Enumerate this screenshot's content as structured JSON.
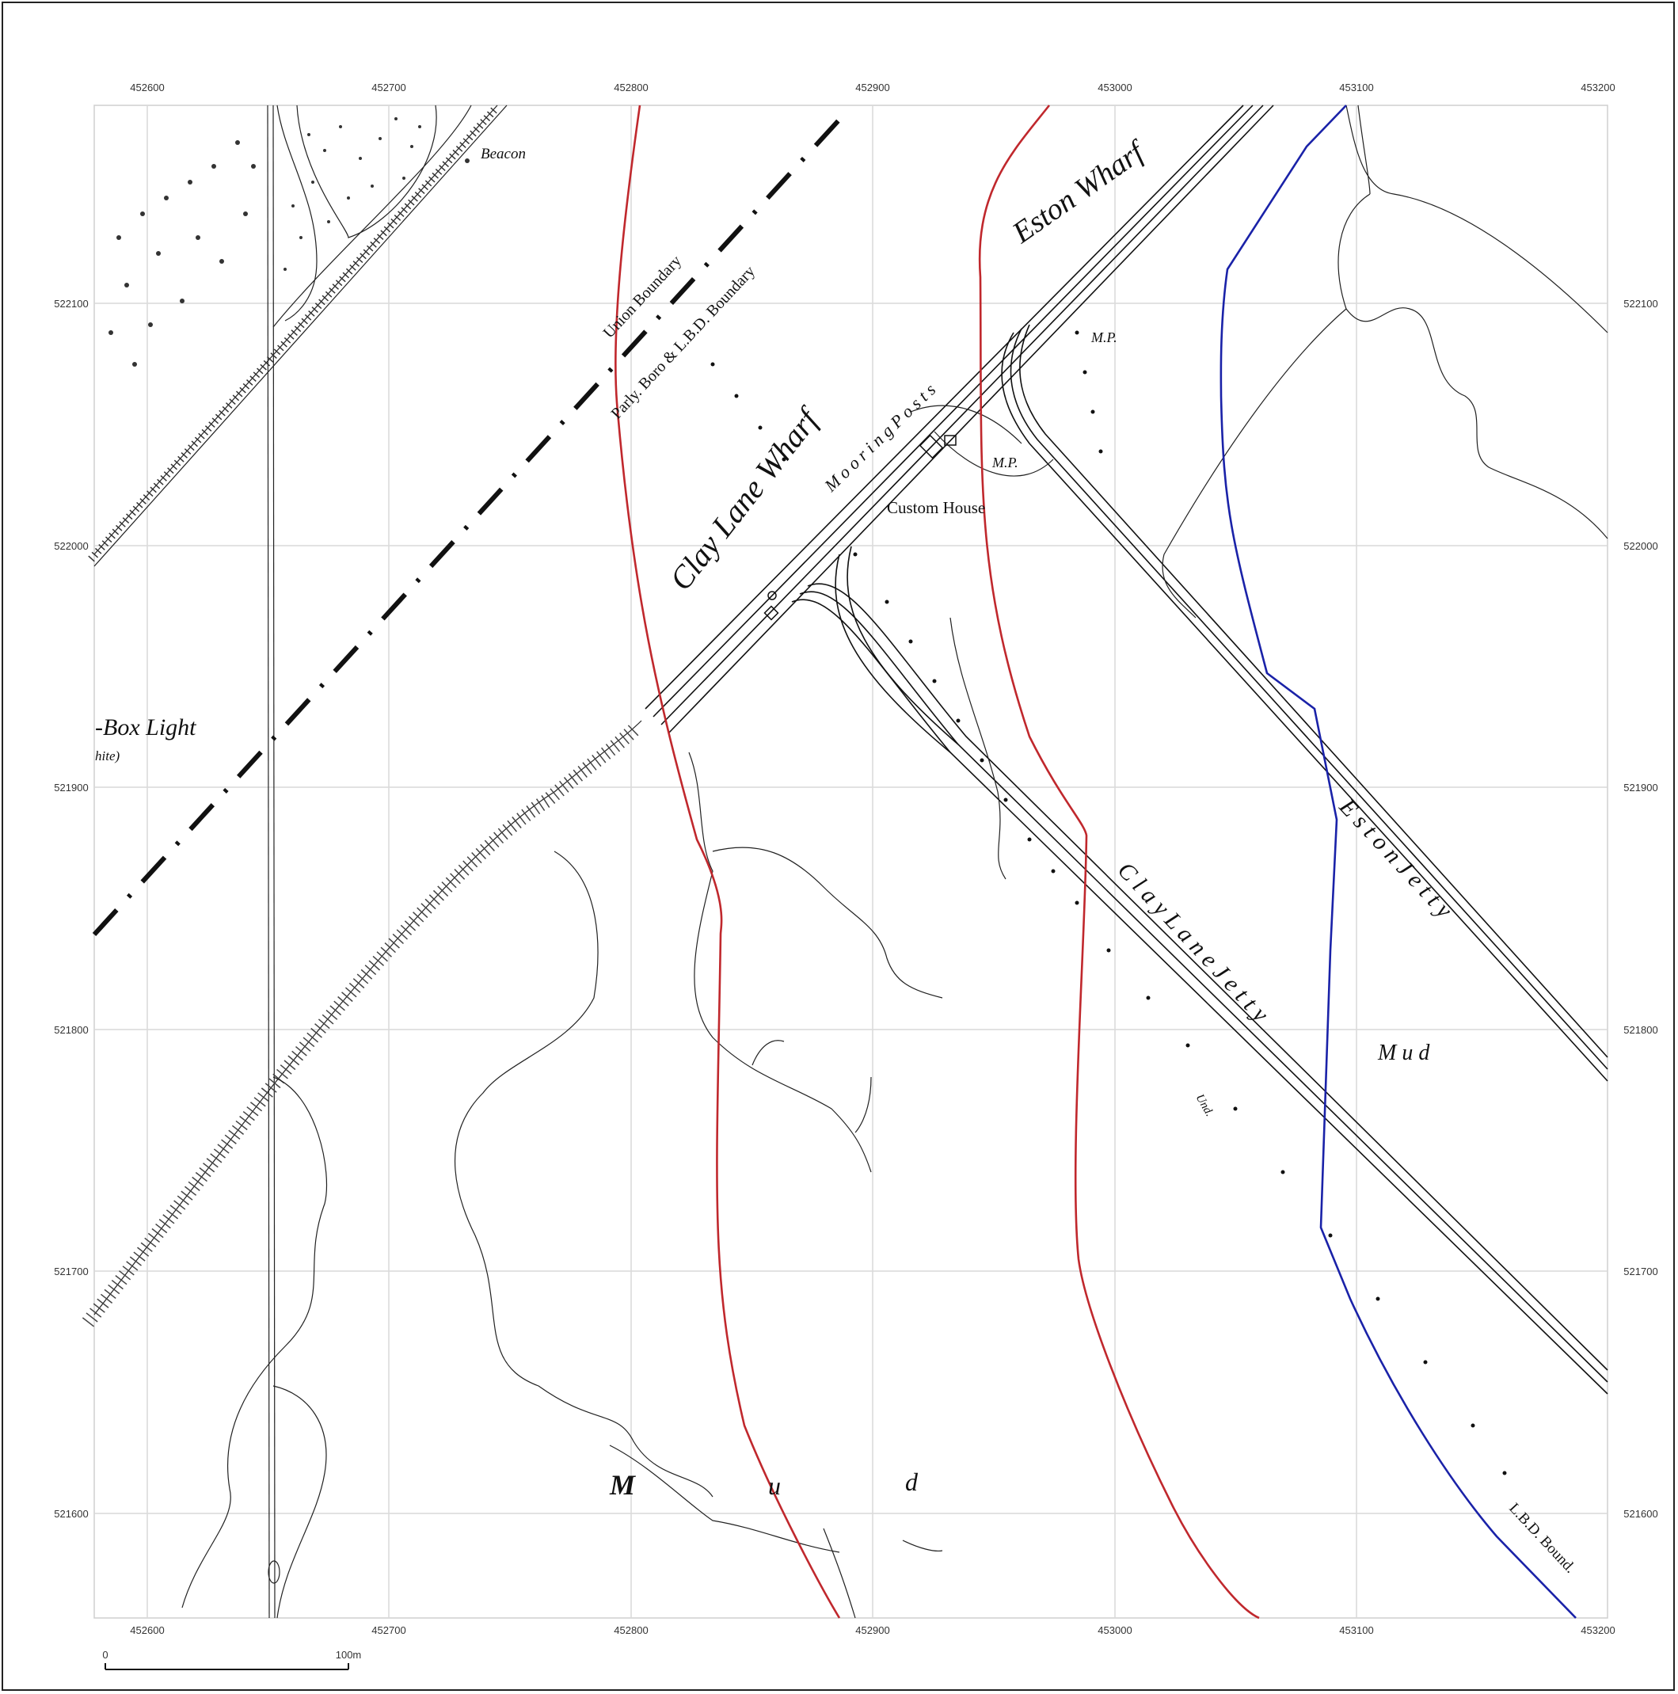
{
  "map": {
    "eastings": [
      "452600",
      "452700",
      "452800",
      "452900",
      "453000",
      "453100",
      "453200"
    ],
    "northings": [
      "522100",
      "522000",
      "521900",
      "521800",
      "521700",
      "521600"
    ],
    "labels": {
      "beacon": "Beacon",
      "union_boundary": "Union Boundary",
      "parly_boundary": "Parly. Boro & L.B.D. Boundary",
      "eston_wharf": "Eston Wharf",
      "mooring_posts": "M o o r i n g   P o s t s",
      "clay_lane_wharf": "Clay Lane Wharf",
      "mp_1": "M.P.",
      "mp_2": "M.P.",
      "custom_house": "Custom House",
      "box_light": "-Box  Light",
      "white": "hite)",
      "eston_jetty": "E s t o n    J e t t y",
      "clay_lane_jetty": "C l a y    L a n e    J e t t y",
      "mud_right": "M   u   d",
      "und": "Und.",
      "mud_bottom_m": "M",
      "mud_bottom_u": "u",
      "mud_bottom_d": "d",
      "lbd_bound": "L.B.D. Bound."
    },
    "scale_bar": {
      "start": "0",
      "end": "100m"
    },
    "line_colors": {
      "red": "#c0282d",
      "blue": "#1a22a8"
    }
  }
}
